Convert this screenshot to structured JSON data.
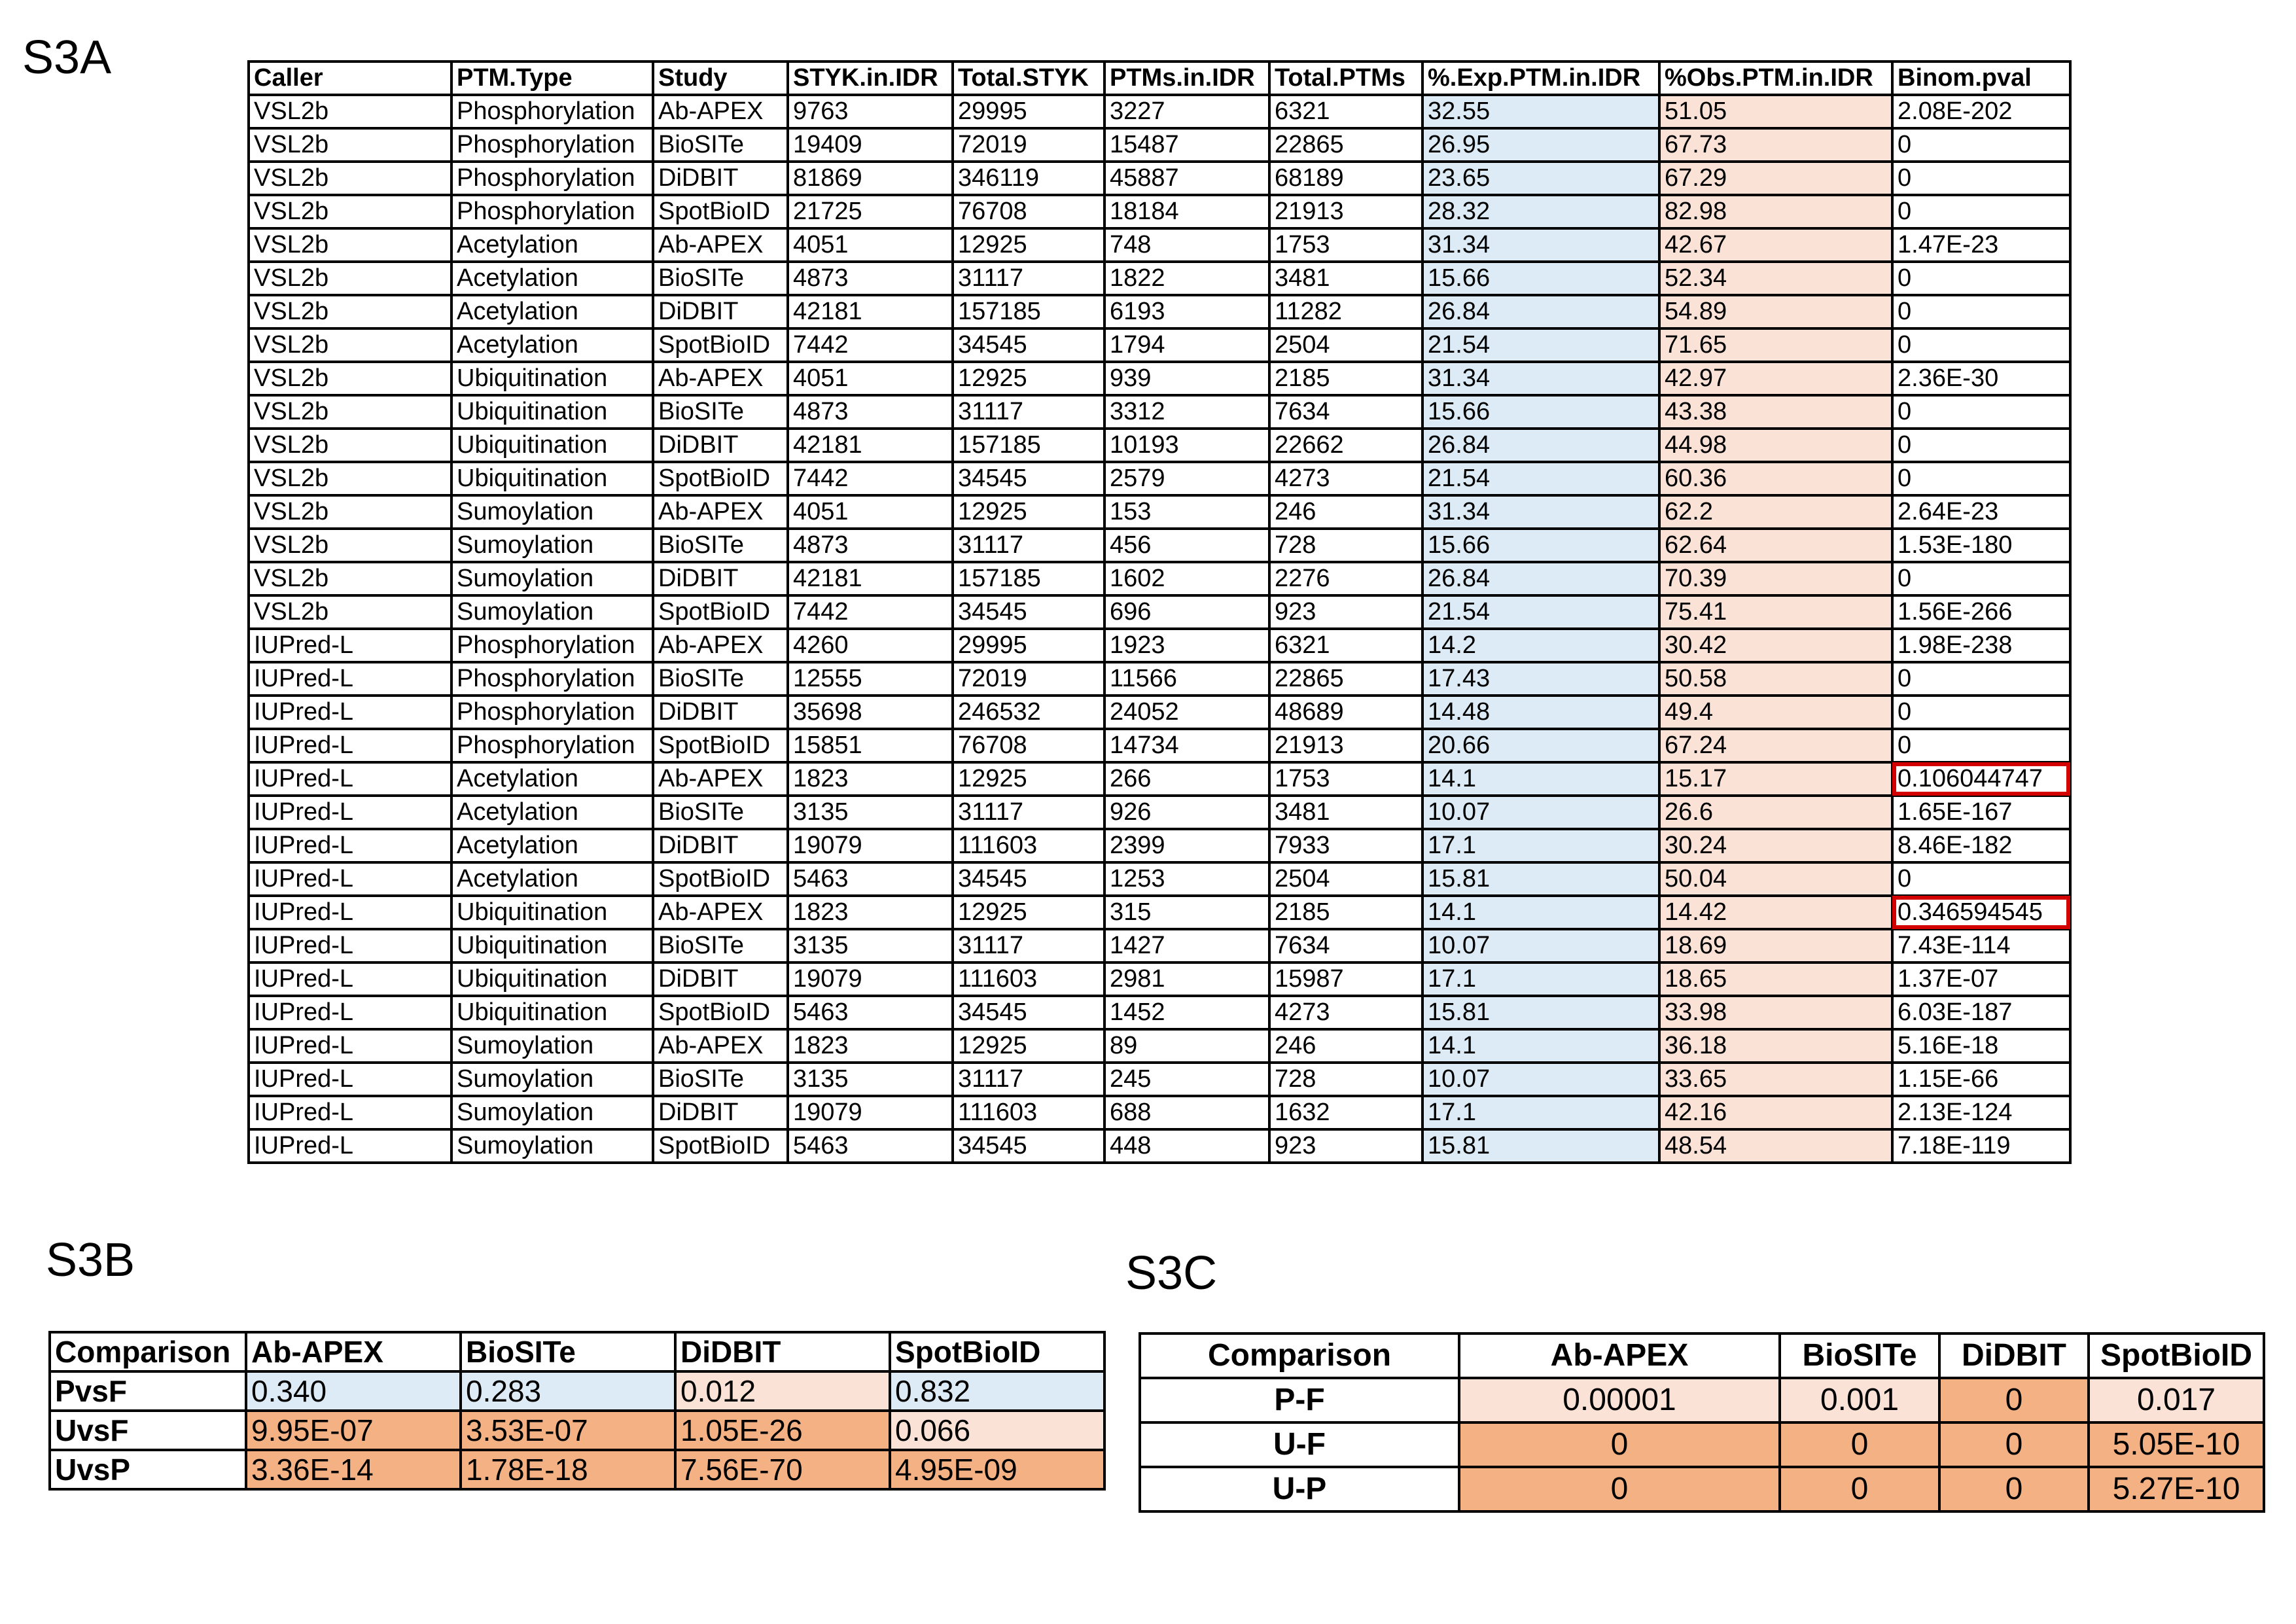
{
  "panels": {
    "a_label": "S3A",
    "b_label": "S3B",
    "c_label": "S3C"
  },
  "tableA": {
    "headers": [
      "Caller",
      "PTM.Type",
      "Study",
      "STYK.in.IDR",
      "Total.STYK",
      "PTMs.in.IDR",
      "Total.PTMs",
      "%.Exp.PTM.in.IDR",
      "%Obs.PTM.in.IDR",
      "Binom.pval"
    ],
    "rows": [
      [
        "VSL2b",
        "Phosphorylation",
        "Ab-APEX",
        "9763",
        "29995",
        "3227",
        "6321",
        "32.55",
        "51.05",
        "2.08E-202"
      ],
      [
        "VSL2b",
        "Phosphorylation",
        "BioSITe",
        "19409",
        "72019",
        "15487",
        "22865",
        "26.95",
        "67.73",
        "0"
      ],
      [
        "VSL2b",
        "Phosphorylation",
        "DiDBIT",
        "81869",
        "346119",
        "45887",
        "68189",
        "23.65",
        "67.29",
        "0"
      ],
      [
        "VSL2b",
        "Phosphorylation",
        "SpotBioID",
        "21725",
        "76708",
        "18184",
        "21913",
        "28.32",
        "82.98",
        "0"
      ],
      [
        "VSL2b",
        "Acetylation",
        "Ab-APEX",
        "4051",
        "12925",
        "748",
        "1753",
        "31.34",
        "42.67",
        "1.47E-23"
      ],
      [
        "VSL2b",
        "Acetylation",
        "BioSITe",
        "4873",
        "31117",
        "1822",
        "3481",
        "15.66",
        "52.34",
        "0"
      ],
      [
        "VSL2b",
        "Acetylation",
        "DiDBIT",
        "42181",
        "157185",
        "6193",
        "11282",
        "26.84",
        "54.89",
        "0"
      ],
      [
        "VSL2b",
        "Acetylation",
        "SpotBioID",
        "7442",
        "34545",
        "1794",
        "2504",
        "21.54",
        "71.65",
        "0"
      ],
      [
        "VSL2b",
        "Ubiquitination",
        "Ab-APEX",
        "4051",
        "12925",
        "939",
        "2185",
        "31.34",
        "42.97",
        "2.36E-30"
      ],
      [
        "VSL2b",
        "Ubiquitination",
        "BioSITe",
        "4873",
        "31117",
        "3312",
        "7634",
        "15.66",
        "43.38",
        "0"
      ],
      [
        "VSL2b",
        "Ubiquitination",
        "DiDBIT",
        "42181",
        "157185",
        "10193",
        "22662",
        "26.84",
        "44.98",
        "0"
      ],
      [
        "VSL2b",
        "Ubiquitination",
        "SpotBioID",
        "7442",
        "34545",
        "2579",
        "4273",
        "21.54",
        "60.36",
        "0"
      ],
      [
        "VSL2b",
        "Sumoylation",
        "Ab-APEX",
        "4051",
        "12925",
        "153",
        "246",
        "31.34",
        "62.2",
        "2.64E-23"
      ],
      [
        "VSL2b",
        "Sumoylation",
        "BioSITe",
        "4873",
        "31117",
        "456",
        "728",
        "15.66",
        "62.64",
        "1.53E-180"
      ],
      [
        "VSL2b",
        "Sumoylation",
        "DiDBIT",
        "42181",
        "157185",
        "1602",
        "2276",
        "26.84",
        "70.39",
        "0"
      ],
      [
        "VSL2b",
        "Sumoylation",
        "SpotBioID",
        "7442",
        "34545",
        "696",
        "923",
        "21.54",
        "75.41",
        "1.56E-266"
      ],
      [
        "IUPred-L",
        "Phosphorylation",
        "Ab-APEX",
        "4260",
        "29995",
        "1923",
        "6321",
        "14.2",
        "30.42",
        "1.98E-238"
      ],
      [
        "IUPred-L",
        "Phosphorylation",
        "BioSITe",
        "12555",
        "72019",
        "11566",
        "22865",
        "17.43",
        "50.58",
        "0"
      ],
      [
        "IUPred-L",
        "Phosphorylation",
        "DiDBIT",
        "35698",
        "246532",
        "24052",
        "48689",
        "14.48",
        "49.4",
        "0"
      ],
      [
        "IUPred-L",
        "Phosphorylation",
        "SpotBioID",
        "15851",
        "76708",
        "14734",
        "21913",
        "20.66",
        "67.24",
        "0"
      ],
      [
        "IUPred-L",
        "Acetylation",
        "Ab-APEX",
        "1823",
        "12925",
        "266",
        "1753",
        "14.1",
        "15.17",
        "0.106044747"
      ],
      [
        "IUPred-L",
        "Acetylation",
        "BioSITe",
        "3135",
        "31117",
        "926",
        "3481",
        "10.07",
        "26.6",
        "1.65E-167"
      ],
      [
        "IUPred-L",
        "Acetylation",
        "DiDBIT",
        "19079",
        "111603",
        "2399",
        "7933",
        "17.1",
        "30.24",
        "8.46E-182"
      ],
      [
        "IUPred-L",
        "Acetylation",
        "SpotBioID",
        "5463",
        "34545",
        "1253",
        "2504",
        "15.81",
        "50.04",
        "0"
      ],
      [
        "IUPred-L",
        "Ubiquitination",
        "Ab-APEX",
        "1823",
        "12925",
        "315",
        "2185",
        "14.1",
        "14.42",
        "0.346594545"
      ],
      [
        "IUPred-L",
        "Ubiquitination",
        "BioSITe",
        "3135",
        "31117",
        "1427",
        "7634",
        "10.07",
        "18.69",
        "7.43E-114"
      ],
      [
        "IUPred-L",
        "Ubiquitination",
        "DiDBIT",
        "19079",
        "111603",
        "2981",
        "15987",
        "17.1",
        "18.65",
        "1.37E-07"
      ],
      [
        "IUPred-L",
        "Ubiquitination",
        "SpotBioID",
        "5463",
        "34545",
        "1452",
        "4273",
        "15.81",
        "33.98",
        "6.03E-187"
      ],
      [
        "IUPred-L",
        "Sumoylation",
        "Ab-APEX",
        "1823",
        "12925",
        "89",
        "246",
        "14.1",
        "36.18",
        "5.16E-18"
      ],
      [
        "IUPred-L",
        "Sumoylation",
        "BioSITe",
        "3135",
        "31117",
        "245",
        "728",
        "10.07",
        "33.65",
        "1.15E-66"
      ],
      [
        "IUPred-L",
        "Sumoylation",
        "DiDBIT",
        "19079",
        "111603",
        "688",
        "1632",
        "17.1",
        "42.16",
        "2.13E-124"
      ],
      [
        "IUPred-L",
        "Sumoylation",
        "SpotBioID",
        "5463",
        "34545",
        "448",
        "923",
        "15.81",
        "48.54",
        "7.18E-119"
      ]
    ],
    "highlighted_pval_rows": [
      20,
      24
    ],
    "highlight_color": "#d40000",
    "exp_column_color": "#dcebf6",
    "obs_column_color": "#fbe2d6"
  },
  "tableB": {
    "headers": [
      "Comparison",
      "Ab-APEX",
      "BioSITe",
      "DiDBIT",
      "SpotBioID"
    ],
    "rows": [
      {
        "label": "PvsF",
        "values": [
          "0.340",
          "0.283",
          "0.012",
          "0.832"
        ],
        "shades": [
          "blue",
          "blue",
          "light",
          "blue"
        ]
      },
      {
        "label": "UvsF",
        "values": [
          "9.95E-07",
          "3.53E-07",
          "1.05E-26",
          "0.066"
        ],
        "shades": [
          "dark",
          "dark",
          "dark",
          "light"
        ]
      },
      {
        "label": "UvsP",
        "values": [
          "3.36E-14",
          "1.78E-18",
          "7.56E-70",
          "4.95E-09"
        ],
        "shades": [
          "dark",
          "dark",
          "dark",
          "dark"
        ]
      }
    ]
  },
  "tableC": {
    "headers": [
      "Comparison",
      "Ab-APEX",
      "BioSITe",
      "DiDBIT",
      "SpotBioID"
    ],
    "rows": [
      {
        "label": "P-F",
        "values": [
          "0.00001",
          "0.001",
          "0",
          "0.017"
        ],
        "shades": [
          "light",
          "light",
          "dark",
          "light"
        ]
      },
      {
        "label": "U-F",
        "values": [
          "0",
          "0",
          "0",
          "5.05E-10"
        ],
        "shades": [
          "dark",
          "dark",
          "dark",
          "dark"
        ]
      },
      {
        "label": "U-P",
        "values": [
          "0",
          "0",
          "0",
          "5.27E-10"
        ],
        "shades": [
          "dark",
          "dark",
          "dark",
          "dark"
        ]
      }
    ]
  },
  "colors": {
    "blue": "#dcebf6",
    "light": "#fbe2d6",
    "dark": "#f4b183"
  }
}
